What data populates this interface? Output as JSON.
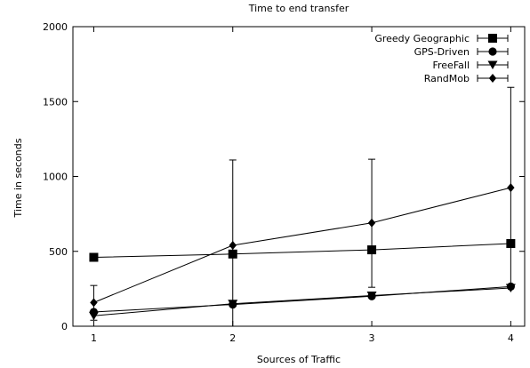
{
  "chart_data": {
    "type": "line",
    "title": "Time to end transfer",
    "xlabel": "Sources of Traffic",
    "ylabel": "Time in seconds",
    "xlim": [
      0.85,
      4.1
    ],
    "ylim": [
      0,
      2000
    ],
    "x_ticks": [
      1,
      2,
      3,
      4
    ],
    "y_ticks": [
      0,
      500,
      1000,
      1500,
      2000
    ],
    "grid": false,
    "legend_position": "top-right",
    "x": [
      1,
      2,
      3,
      4
    ],
    "series": [
      {
        "name": "Greedy Geographic",
        "marker": "square",
        "values": [
          460,
          482,
          510,
          552
        ],
        "err_low": [
          460,
          482,
          510,
          552
        ],
        "err_high": [
          460,
          482,
          510,
          552
        ]
      },
      {
        "name": "GPS-Driven",
        "marker": "circle",
        "values": [
          95,
          145,
          200,
          265
        ],
        "err_low": [
          95,
          145,
          200,
          265
        ],
        "err_high": [
          95,
          145,
          200,
          265
        ]
      },
      {
        "name": "FreeFall",
        "marker": "triangle-down",
        "values": [
          70,
          150,
          205,
          255
        ],
        "err_low": [
          70,
          150,
          205,
          255
        ],
        "err_high": [
          70,
          150,
          205,
          255
        ]
      },
      {
        "name": "RandMob",
        "marker": "diamond",
        "values": [
          158,
          540,
          690,
          925
        ],
        "err_low": [
          40,
          0,
          260,
          255
        ],
        "err_high": [
          272,
          1110,
          1115,
          1595
        ]
      }
    ]
  }
}
